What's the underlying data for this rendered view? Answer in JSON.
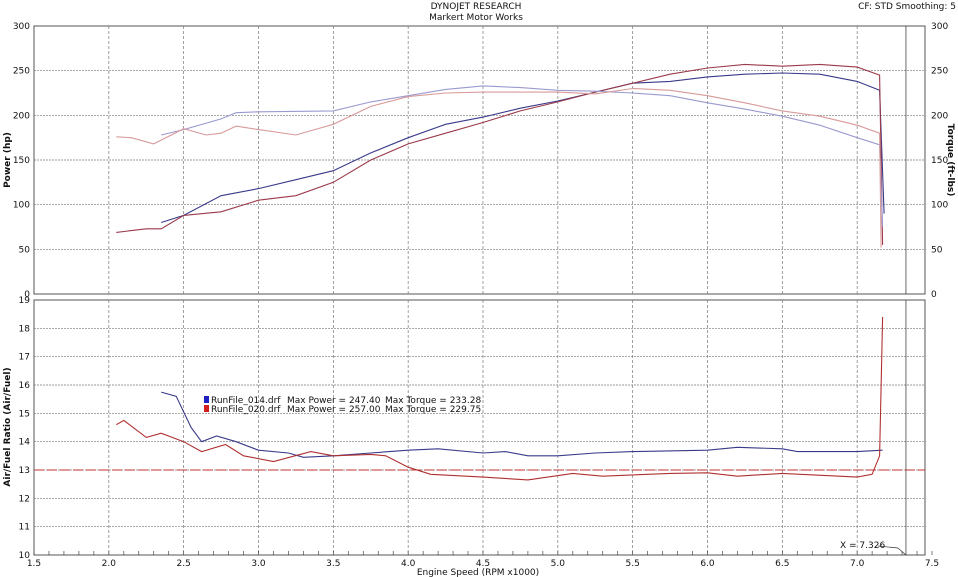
{
  "header": {
    "title": "DYNOJET RESEARCH",
    "subtitle": "Markert Motor Works",
    "settings": "CF: STD  Smoothing: 5"
  },
  "chart_data": [
    {
      "type": "line",
      "panel": "top",
      "ylabel": "Power (hp)",
      "y2label": "Torque (ft-lbs)",
      "xlim": [
        1.5,
        7.5
      ],
      "ylim": [
        0,
        300
      ],
      "y2lim": [
        0,
        300
      ],
      "yticks": [
        0,
        50,
        100,
        150,
        200,
        250,
        300
      ],
      "grid": true,
      "series": [
        {
          "name": "RunFile_014.drf",
          "measure": "power",
          "color": "#3a3a8a",
          "x": [
            2.35,
            2.5,
            2.75,
            3.0,
            3.25,
            3.5,
            3.75,
            4.0,
            4.25,
            4.5,
            4.75,
            5.0,
            5.25,
            5.5,
            5.75,
            6.0,
            6.25,
            6.5,
            6.75,
            7.0,
            7.15,
            7.18
          ],
          "y": [
            80,
            88,
            110,
            118,
            128,
            138,
            158,
            175,
            190,
            198,
            208,
            216,
            226,
            236,
            238,
            243,
            246,
            247.4,
            246,
            238,
            228,
            90
          ]
        },
        {
          "name": "RunFile_020.drf",
          "measure": "power",
          "color": "#9a3a4a",
          "x": [
            2.05,
            2.25,
            2.35,
            2.5,
            2.75,
            3.0,
            3.25,
            3.5,
            3.75,
            4.0,
            4.25,
            4.5,
            4.75,
            5.0,
            5.25,
            5.5,
            5.75,
            6.0,
            6.25,
            6.5,
            6.75,
            7.0,
            7.15,
            7.17
          ],
          "y": [
            69,
            73,
            73,
            88,
            92,
            105,
            110,
            125,
            150,
            168,
            180,
            192,
            205,
            215,
            226,
            236,
            246,
            253,
            257,
            255,
            257,
            254,
            245,
            55
          ]
        },
        {
          "name": "RunFile_014.drf",
          "measure": "torque",
          "color": "#9a9ad0",
          "x": [
            2.35,
            2.5,
            2.75,
            2.85,
            3.0,
            3.5,
            3.75,
            4.0,
            4.25,
            4.5,
            4.75,
            5.0,
            5.25,
            5.5,
            5.75,
            6.0,
            6.25,
            6.5,
            6.75,
            7.0,
            7.15,
            7.17
          ],
          "y": [
            178,
            184,
            196,
            203,
            204,
            205,
            215,
            222,
            229,
            233,
            231,
            228,
            227,
            225,
            222,
            214,
            207,
            199,
            189,
            175,
            167,
            75
          ]
        },
        {
          "name": "RunFile_020.drf",
          "measure": "torque",
          "color": "#d89a9a",
          "x": [
            2.05,
            2.15,
            2.3,
            2.5,
            2.65,
            2.75,
            2.85,
            3.0,
            3.25,
            3.5,
            3.75,
            4.0,
            4.25,
            4.5,
            4.75,
            5.0,
            5.25,
            5.5,
            5.75,
            6.0,
            6.25,
            6.5,
            6.75,
            7.0,
            7.15,
            7.16
          ],
          "y": [
            176,
            175,
            168,
            185,
            178,
            180,
            188,
            184,
            178,
            190,
            210,
            221,
            225,
            226,
            226,
            226,
            224,
            230,
            228,
            222,
            214,
            205,
            199,
            189,
            180,
            52
          ]
        }
      ]
    },
    {
      "type": "line",
      "panel": "bottom",
      "ylabel": "Air/Fuel Ratio (Air/Fuel)",
      "xlabel": "Engine Speed (RPM x1000)",
      "xlim": [
        1.5,
        7.5
      ],
      "xticks": [
        1.5,
        2.0,
        2.5,
        3.0,
        3.5,
        4.0,
        4.5,
        5.0,
        5.5,
        6.0,
        6.5,
        7.0,
        7.5
      ],
      "ylim": [
        10,
        19
      ],
      "yticks": [
        10,
        11,
        12,
        13,
        14,
        15,
        16,
        17,
        18,
        19
      ],
      "grid": true,
      "reference_line": {
        "y": 13,
        "color": "#c03030"
      },
      "cursor": {
        "x": 7.326,
        "label": "X = 7.326"
      },
      "series": [
        {
          "name": "RunFile_014.drf",
          "color": "#3a3a8a",
          "x": [
            2.35,
            2.45,
            2.55,
            2.62,
            2.72,
            2.85,
            3.0,
            3.2,
            3.3,
            3.5,
            3.75,
            4.0,
            4.2,
            4.5,
            4.65,
            4.8,
            5.0,
            5.25,
            5.5,
            6.0,
            6.2,
            6.5,
            6.6,
            7.0,
            7.17
          ],
          "y": [
            15.75,
            15.6,
            14.5,
            14.0,
            14.2,
            14.0,
            13.7,
            13.6,
            13.45,
            13.5,
            13.6,
            13.7,
            13.75,
            13.6,
            13.65,
            13.5,
            13.5,
            13.6,
            13.65,
            13.7,
            13.8,
            13.75,
            13.65,
            13.65,
            13.7
          ]
        },
        {
          "name": "RunFile_020.drf",
          "color": "#b03030",
          "x": [
            2.05,
            2.1,
            2.25,
            2.35,
            2.5,
            2.62,
            2.78,
            2.9,
            3.1,
            3.35,
            3.5,
            3.75,
            3.85,
            4.0,
            4.15,
            4.5,
            4.8,
            5.1,
            5.3,
            5.75,
            6.0,
            6.2,
            6.5,
            7.0,
            7.1,
            7.15,
            7.17
          ],
          "y": [
            14.6,
            14.75,
            14.15,
            14.3,
            14.0,
            13.65,
            13.9,
            13.5,
            13.3,
            13.65,
            13.5,
            13.55,
            13.5,
            13.1,
            12.85,
            12.75,
            12.65,
            12.88,
            12.78,
            12.88,
            12.9,
            12.78,
            12.88,
            12.75,
            12.85,
            13.5,
            18.4
          ]
        }
      ]
    }
  ],
  "legend": [
    {
      "file": "RunFile_014.drf",
      "max_power": "Max Power = 247.40",
      "max_torque": "Max Torque = 233.28",
      "color": "#2020c0"
    },
    {
      "file": "RunFile_020.drf",
      "max_power": "Max Power = 257.00",
      "max_torque": "Max Torque = 229.75",
      "color": "#d02020"
    }
  ]
}
